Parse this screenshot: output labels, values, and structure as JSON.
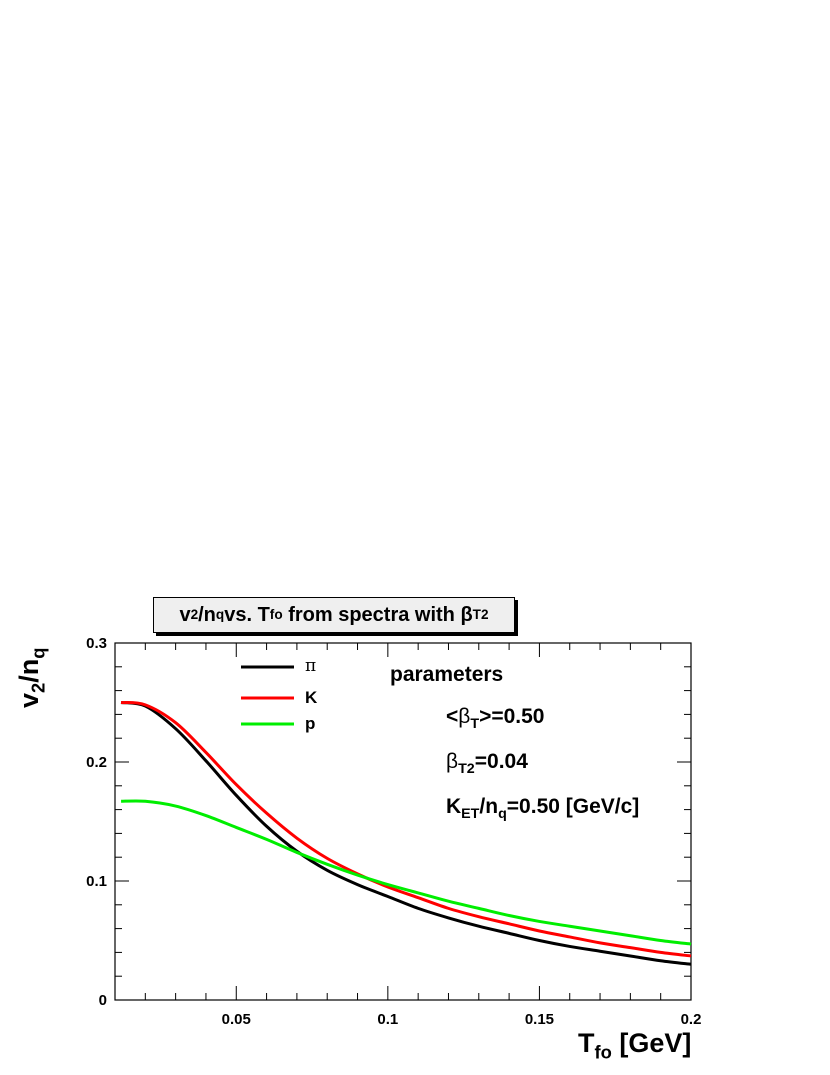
{
  "chart_data": {
    "type": "line",
    "title": {
      "a": "v",
      "a_sub": "2",
      "b": "/n",
      "b_sub": "q",
      "c": " vs. T",
      "c_sub": "fo",
      "d": " from spectra with ",
      "e": "β",
      "e_sub": "T2"
    },
    "xlabel": {
      "main": "T",
      "sub": "fo",
      "rest": " [GeV]"
    },
    "ylabel": {
      "a": "v",
      "a_sub": "2",
      "b": "/n",
      "b_sub": "q"
    },
    "xlim": [
      0.01,
      0.2
    ],
    "ylim": [
      0,
      0.3
    ],
    "x_ticks": [
      0.05,
      0.1,
      0.15,
      0.2
    ],
    "x_tick_labels": [
      "0.05",
      "0.1",
      "0.15",
      "0.2"
    ],
    "y_ticks": [
      0,
      0.1,
      0.2,
      0.3
    ],
    "y_tick_labels": [
      "0",
      "0.1",
      "0.2",
      "0.3"
    ],
    "legend_placement": "top-left",
    "x": [
      0.012,
      0.02,
      0.03,
      0.04,
      0.05,
      0.06,
      0.07,
      0.08,
      0.09,
      0.1,
      0.11,
      0.12,
      0.13,
      0.14,
      0.15,
      0.16,
      0.17,
      0.18,
      0.19,
      0.2
    ],
    "series": [
      {
        "name": "π",
        "color": "#000000",
        "values": [
          0.25,
          0.247,
          0.228,
          0.201,
          0.172,
          0.146,
          0.125,
          0.109,
          0.097,
          0.087,
          0.077,
          0.069,
          0.062,
          0.056,
          0.05,
          0.045,
          0.041,
          0.037,
          0.033,
          0.03
        ]
      },
      {
        "name": "K",
        "color": "#ff0000",
        "values": [
          0.25,
          0.248,
          0.233,
          0.208,
          0.181,
          0.157,
          0.136,
          0.119,
          0.106,
          0.095,
          0.086,
          0.077,
          0.07,
          0.064,
          0.058,
          0.053,
          0.048,
          0.044,
          0.04,
          0.037
        ]
      },
      {
        "name": "p",
        "color": "#00ee00",
        "values": [
          0.167,
          0.167,
          0.163,
          0.155,
          0.145,
          0.135,
          0.124,
          0.114,
          0.105,
          0.097,
          0.09,
          0.083,
          0.077,
          0.071,
          0.066,
          0.062,
          0.058,
          0.054,
          0.05,
          0.047
        ]
      }
    ],
    "annotations": {
      "header": "parameters",
      "beta_mean": {
        "pre": "<",
        "sym": "β",
        "sub": "T",
        "post": ">=0.50"
      },
      "beta_t2": {
        "sym": "β",
        "sub": "T2",
        "post": "=0.04"
      },
      "ket": {
        "pre": "K",
        "sub": "ET",
        "post": "/n",
        "sub2": "q",
        "tail": "=0.50 [GeV/c]"
      }
    }
  }
}
